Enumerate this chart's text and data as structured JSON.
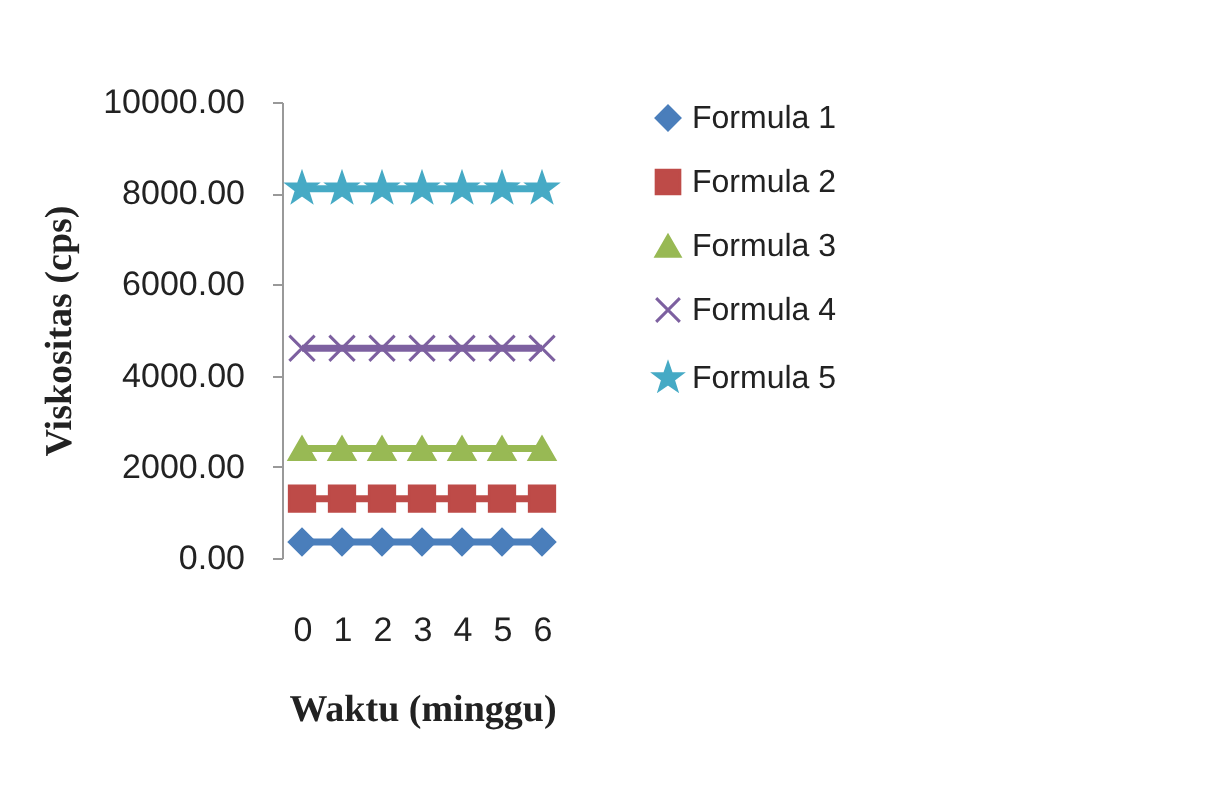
{
  "chart_data": {
    "type": "line",
    "xlabel": "Waktu (minggu)",
    "ylabel": "Viskositas (cps)",
    "categories": [
      "0",
      "1",
      "2",
      "3",
      "4",
      "5",
      "6"
    ],
    "series": [
      {
        "name": "Formula 1",
        "color": "#4a7ebb",
        "marker": "diamond",
        "values": [
          350,
          350,
          350,
          350,
          350,
          350,
          350
        ]
      },
      {
        "name": "Formula 2",
        "color": "#be4b48",
        "marker": "square",
        "values": [
          1300,
          1300,
          1300,
          1300,
          1300,
          1300,
          1300
        ]
      },
      {
        "name": "Formula 3",
        "color": "#98b954",
        "marker": "triangle",
        "values": [
          2400,
          2400,
          2400,
          2400,
          2400,
          2400,
          2400
        ]
      },
      {
        "name": "Formula 4",
        "color": "#7d60a0",
        "marker": "cross",
        "values": [
          4600,
          4600,
          4600,
          4600,
          4600,
          4600,
          4600
        ]
      },
      {
        "name": "Formula 5",
        "color": "#46aac5",
        "marker": "star",
        "values": [
          8100,
          8100,
          8100,
          8100,
          8100,
          8100,
          8100
        ]
      }
    ],
    "ylim": [
      0,
      10000
    ],
    "yticks": [
      {
        "value": 0,
        "label": "0.00"
      },
      {
        "value": 2000,
        "label": "2000.00"
      },
      {
        "value": 4000,
        "label": "4000.00"
      },
      {
        "value": 6000,
        "label": "6000.00"
      },
      {
        "value": 8000,
        "label": "8000.00"
      },
      {
        "value": 10000,
        "label": "10000.00"
      }
    ],
    "grid": false,
    "legend": "right"
  }
}
